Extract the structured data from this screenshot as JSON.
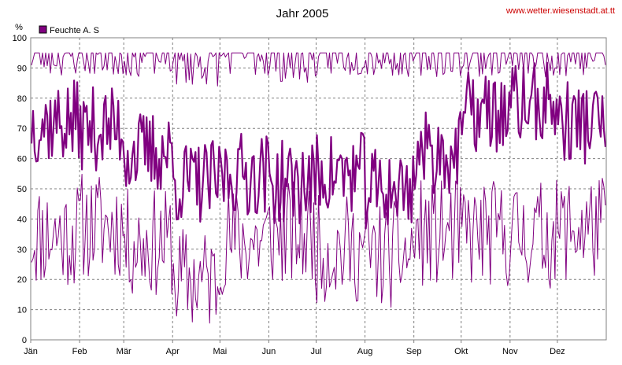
{
  "chart_data": {
    "type": "line",
    "title": "Jahr 2005",
    "source_text": "www.wetter.wiesenstadt.at.tt",
    "y_unit": "%",
    "ylim": [
      0,
      100
    ],
    "y_ticks": [
      0,
      10,
      20,
      30,
      40,
      50,
      60,
      70,
      80,
      90,
      100
    ],
    "x_tick_labels": [
      "Jän",
      "Feb",
      "Mär",
      "Apr",
      "Mai",
      "Jun",
      "Jul",
      "Aug",
      "Sep",
      "Okt",
      "Nov",
      "Dez"
    ],
    "grid": true,
    "legend_position": "top-left",
    "series": [
      {
        "name": "Feuchte A. S",
        "color": "#800080",
        "note_values": "approximate monthly envelope read from the plot: daily minimum, mean, maximum (%)",
        "monthly_min": [
          35,
          38,
          32,
          20,
          33,
          35,
          30,
          28,
          35,
          35,
          35,
          37
        ],
        "monthly_mean": [
          72,
          70,
          62,
          52,
          55,
          52,
          55,
          50,
          62,
          75,
          78,
          72
        ],
        "monthly_max": [
          95,
          95,
          95,
          92,
          95,
          93,
          95,
          95,
          95,
          95,
          95,
          95
        ]
      }
    ]
  }
}
